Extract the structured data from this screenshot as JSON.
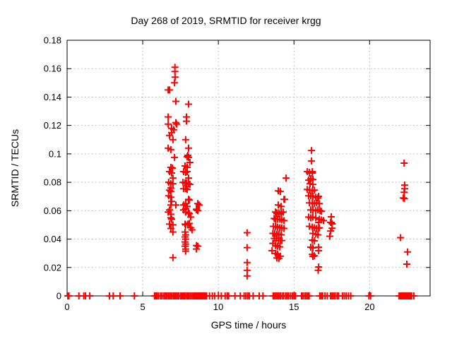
{
  "window": {
    "background": "#ffffff"
  },
  "chart": {
    "title": "Day 268 of 2019, SRMTID for receiver krgg",
    "xlabel": "GPS time / hours",
    "ylabel": "SRMTID / TECUs"
  },
  "chart_data": {
    "type": "scatter",
    "title": "Day 268 of 2019, SRMTID for receiver krgg",
    "xlabel": "GPS time / hours",
    "ylabel": "SRMTID / TECUs",
    "xlim": [
      0,
      24
    ],
    "ylim": [
      0,
      0.18
    ],
    "grid": true,
    "legend": "none",
    "marker": "plus",
    "marker_color": "#ff0000",
    "axis_color": "#000000",
    "grid_color": "#b0b0b0",
    "x_ticks": {
      "values": [
        0,
        5,
        10,
        15,
        20
      ],
      "labels": [
        "0",
        "5",
        "10",
        "15",
        "20"
      ]
    },
    "y_ticks": {
      "values": [
        0,
        0.02,
        0.04,
        0.06,
        0.08,
        0.1,
        0.12,
        0.14,
        0.16,
        0.18
      ],
      "labels": [
        "0",
        "0.02",
        "0.04",
        "0.06",
        "0.08",
        "0.1",
        "0.12",
        "0.14",
        "0.16",
        "0.18"
      ]
    },
    "series": [
      {
        "name": "SRMTID",
        "points": [
          [
            7.13,
            0.161
          ],
          [
            7.13,
            0.158
          ],
          [
            7.14,
            0.154
          ],
          [
            7.1,
            0.15
          ],
          [
            6.68,
            0.145
          ],
          [
            6.77,
            0.145
          ],
          [
            7.19,
            0.137
          ],
          [
            8.03,
            0.135
          ],
          [
            6.68,
            0.126
          ],
          [
            7.89,
            0.126
          ],
          [
            7.89,
            0.123
          ],
          [
            6.68,
            0.121
          ],
          [
            7.19,
            0.122
          ],
          [
            7.24,
            0.121
          ],
          [
            6.91,
            0.118
          ],
          [
            7.05,
            0.117
          ],
          [
            6.91,
            0.115
          ],
          [
            6.77,
            0.113
          ],
          [
            7.0,
            0.11
          ],
          [
            6.68,
            0.104
          ],
          [
            6.86,
            0.103
          ],
          [
            7.1,
            0.0975
          ],
          [
            6.86,
            0.0905
          ],
          [
            6.96,
            0.09
          ],
          [
            6.77,
            0.0875
          ],
          [
            6.91,
            0.0865
          ],
          [
            7.0,
            0.083
          ],
          [
            6.72,
            0.08
          ],
          [
            6.86,
            0.079
          ],
          [
            7.0,
            0.079
          ],
          [
            6.86,
            0.076
          ],
          [
            6.77,
            0.0745
          ],
          [
            6.86,
            0.0735
          ],
          [
            6.72,
            0.0705
          ],
          [
            6.86,
            0.0695
          ],
          [
            6.91,
            0.0665
          ],
          [
            6.86,
            0.064
          ],
          [
            7.19,
            0.064
          ],
          [
            6.77,
            0.0605
          ],
          [
            7.84,
            0.11
          ],
          [
            8.03,
            0.104
          ],
          [
            7.98,
            0.099
          ],
          [
            7.94,
            0.098
          ],
          [
            8.03,
            0.0975
          ],
          [
            8.12,
            0.094
          ],
          [
            7.8,
            0.0915
          ],
          [
            7.94,
            0.0905
          ],
          [
            7.7,
            0.0875
          ],
          [
            7.84,
            0.087
          ],
          [
            7.94,
            0.0875
          ],
          [
            8.03,
            0.083
          ],
          [
            7.66,
            0.08
          ],
          [
            7.8,
            0.0795
          ],
          [
            7.89,
            0.0795
          ],
          [
            8.03,
            0.079
          ],
          [
            8.12,
            0.0785
          ],
          [
            7.7,
            0.0755
          ],
          [
            7.84,
            0.0755
          ],
          [
            7.94,
            0.075
          ],
          [
            8.03,
            0.068
          ],
          [
            8.08,
            0.0675
          ],
          [
            7.84,
            0.065
          ],
          [
            7.7,
            0.064
          ],
          [
            7.94,
            0.063
          ],
          [
            8.64,
            0.065
          ],
          [
            8.73,
            0.064
          ],
          [
            8.55,
            0.061
          ],
          [
            7.84,
            0.059
          ],
          [
            8.03,
            0.0585
          ],
          [
            6.68,
            0.059
          ],
          [
            6.86,
            0.0575
          ],
          [
            6.86,
            0.055
          ],
          [
            6.91,
            0.054
          ],
          [
            6.77,
            0.0505
          ],
          [
            7.0,
            0.05
          ],
          [
            6.86,
            0.0475
          ],
          [
            7.0,
            0.045
          ],
          [
            7.0,
            0.027
          ],
          [
            7.7,
            0.0605
          ],
          [
            7.84,
            0.0615
          ],
          [
            8.08,
            0.058
          ],
          [
            8.17,
            0.0555
          ],
          [
            8.55,
            0.0605
          ],
          [
            8.64,
            0.06
          ],
          [
            7.8,
            0.0505
          ],
          [
            7.84,
            0.05
          ],
          [
            7.98,
            0.0505
          ],
          [
            8.08,
            0.051
          ],
          [
            8.17,
            0.048
          ],
          [
            8.26,
            0.0465
          ],
          [
            7.8,
            0.045
          ],
          [
            7.84,
            0.043
          ],
          [
            7.8,
            0.0415
          ],
          [
            7.84,
            0.04
          ],
          [
            7.8,
            0.038
          ],
          [
            7.84,
            0.0365
          ],
          [
            7.8,
            0.035
          ],
          [
            7.84,
            0.033
          ],
          [
            7.84,
            0.0315
          ],
          [
            8.55,
            0.0355
          ],
          [
            8.64,
            0.035
          ],
          [
            8.55,
            0.033
          ],
          [
            11.9,
            0.0445
          ],
          [
            11.9,
            0.034
          ],
          [
            11.9,
            0.0235
          ],
          [
            11.9,
            0.018
          ],
          [
            11.9,
            0.014
          ],
          [
            14.48,
            0.083
          ],
          [
            13.96,
            0.074
          ],
          [
            14.1,
            0.0735
          ],
          [
            14.34,
            0.068
          ],
          [
            14.39,
            0.068
          ],
          [
            13.96,
            0.064
          ],
          [
            14.15,
            0.063
          ],
          [
            13.78,
            0.059
          ],
          [
            13.87,
            0.0585
          ],
          [
            14.01,
            0.0585
          ],
          [
            14.15,
            0.0585
          ],
          [
            14.29,
            0.059
          ],
          [
            13.87,
            0.058
          ],
          [
            14.01,
            0.0577
          ],
          [
            14.15,
            0.0587
          ],
          [
            13.69,
            0.0545
          ],
          [
            13.78,
            0.054
          ],
          [
            13.92,
            0.054
          ],
          [
            14.06,
            0.054
          ],
          [
            14.2,
            0.0535
          ],
          [
            14.34,
            0.053
          ],
          [
            13.64,
            0.049
          ],
          [
            13.78,
            0.049
          ],
          [
            13.92,
            0.0485
          ],
          [
            14.06,
            0.048
          ],
          [
            14.2,
            0.048
          ],
          [
            14.34,
            0.0475
          ],
          [
            13.6,
            0.044
          ],
          [
            13.73,
            0.044
          ],
          [
            13.87,
            0.0435
          ],
          [
            14.01,
            0.0435
          ],
          [
            14.15,
            0.043
          ],
          [
            13.69,
            0.0405
          ],
          [
            13.83,
            0.0405
          ],
          [
            13.97,
            0.039
          ],
          [
            14.1,
            0.039
          ],
          [
            14.2,
            0.039
          ],
          [
            13.78,
            0.0355
          ],
          [
            13.92,
            0.035
          ],
          [
            14.06,
            0.0345
          ],
          [
            13.6,
            0.037
          ],
          [
            13.55,
            0.0318
          ],
          [
            13.78,
            0.03
          ],
          [
            13.92,
            0.0295
          ],
          [
            13.87,
            0.0267
          ],
          [
            14.01,
            0.0265
          ],
          [
            14.1,
            0.028
          ],
          [
            16.16,
            0.1024
          ],
          [
            16.16,
            0.095
          ],
          [
            16.02,
            0.0865
          ],
          [
            16.21,
            0.0865
          ],
          [
            15.88,
            0.0875
          ],
          [
            16.02,
            0.087
          ],
          [
            16.21,
            0.0875
          ],
          [
            16.11,
            0.0825
          ],
          [
            16.25,
            0.082
          ],
          [
            15.97,
            0.0815
          ],
          [
            16.06,
            0.079
          ],
          [
            16.25,
            0.0785
          ],
          [
            15.88,
            0.075
          ],
          [
            16.02,
            0.0745
          ],
          [
            16.21,
            0.074
          ],
          [
            16.35,
            0.0745
          ],
          [
            15.97,
            0.0705
          ],
          [
            16.11,
            0.0705
          ],
          [
            16.25,
            0.07
          ],
          [
            16.44,
            0.0695
          ],
          [
            16.58,
            0.069
          ],
          [
            16.63,
            0.0701
          ],
          [
            16.02,
            0.0655
          ],
          [
            16.21,
            0.0655
          ],
          [
            16.35,
            0.065
          ],
          [
            16.49,
            0.0655
          ],
          [
            16.67,
            0.065
          ],
          [
            16.11,
            0.0605
          ],
          [
            16.25,
            0.0605
          ],
          [
            16.44,
            0.06
          ],
          [
            16.58,
            0.0605
          ],
          [
            16.72,
            0.06
          ],
          [
            16.82,
            0.0595
          ],
          [
            15.97,
            0.0555
          ],
          [
            16.11,
            0.055
          ],
          [
            16.25,
            0.0555
          ],
          [
            16.44,
            0.055
          ],
          [
            16.67,
            0.054
          ],
          [
            16.82,
            0.0535
          ],
          [
            16.95,
            0.053
          ],
          [
            16.02,
            0.049
          ],
          [
            16.21,
            0.0485
          ],
          [
            16.35,
            0.048
          ],
          [
            16.49,
            0.0475
          ],
          [
            16.67,
            0.048
          ],
          [
            16.63,
            0.0517
          ],
          [
            16.25,
            0.044
          ],
          [
            16.44,
            0.0435
          ],
          [
            16.58,
            0.043
          ],
          [
            16.63,
            0.0477
          ],
          [
            16.21,
            0.0393
          ],
          [
            16.35,
            0.0388
          ],
          [
            16.11,
            0.0343
          ],
          [
            16.25,
            0.0338
          ],
          [
            16.63,
            0.0343
          ],
          [
            16.63,
            0.0318
          ],
          [
            16.21,
            0.0293
          ],
          [
            16.35,
            0.0283
          ],
          [
            16.25,
            0.0278
          ],
          [
            16.63,
            0.0204
          ],
          [
            16.6,
            0.018
          ],
          [
            17.47,
            0.0557
          ],
          [
            17.42,
            0.0517
          ],
          [
            17.47,
            0.0517
          ],
          [
            17.52,
            0.0507
          ],
          [
            17.52,
            0.0477
          ],
          [
            17.42,
            0.0457
          ],
          [
            17.37,
            0.042
          ],
          [
            22.28,
            0.0935
          ],
          [
            22.32,
            0.078
          ],
          [
            22.32,
            0.0755
          ],
          [
            22.28,
            0.073
          ],
          [
            22.23,
            0.069
          ],
          [
            22.3,
            0.0685
          ],
          [
            22.05,
            0.041
          ],
          [
            22.51,
            0.031
          ],
          [
            22.46,
            0.0224
          ]
        ],
        "zero_value_x": [
          0.05,
          0.12,
          0.78,
          1.1,
          1.22,
          1.5,
          2.8,
          3.05,
          3.5,
          4.45,
          5.78,
          5.86,
          5.95,
          6.05,
          6.18,
          6.28,
          6.4,
          6.5,
          6.58,
          6.68,
          6.75,
          6.85,
          6.95,
          7.05,
          7.12,
          7.2,
          7.3,
          7.38,
          7.5,
          7.58,
          7.65,
          7.72,
          7.8,
          7.9,
          7.97,
          8.05,
          8.15,
          8.25,
          8.35,
          8.42,
          8.5,
          8.56,
          8.62,
          8.68,
          8.74,
          8.8,
          8.86,
          8.92,
          9.0,
          9.08,
          9.15,
          9.22,
          9.42,
          9.6,
          9.75,
          10.0,
          10.2,
          10.45,
          10.58,
          10.68,
          11.1,
          11.45,
          11.7,
          11.82,
          11.95,
          12.05,
          12.3,
          12.7,
          12.95,
          13.62,
          13.7,
          13.8,
          13.9,
          14.0,
          14.1,
          14.22,
          14.32,
          14.45,
          14.55,
          14.65,
          14.78,
          14.9,
          15.0,
          15.1,
          15.5,
          15.6,
          15.72,
          15.82,
          15.92,
          16.0,
          16.7,
          16.8,
          16.9,
          17.05,
          17.2,
          17.42,
          17.52,
          17.62,
          17.72,
          17.85,
          17.95,
          18.2,
          18.32,
          18.45,
          18.6,
          18.75,
          19.95,
          20.07,
          21.95,
          22.02,
          22.08,
          22.15,
          22.22,
          22.28,
          22.35,
          22.42,
          22.48,
          22.55,
          22.62,
          22.7,
          22.78,
          22.92
        ]
      }
    ]
  }
}
